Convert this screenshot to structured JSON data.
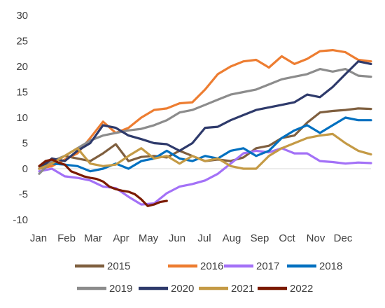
{
  "chart_data": {
    "type": "line",
    "title": "",
    "xlabel": "",
    "ylabel": "",
    "x_ticks": [
      "Jan",
      "Feb",
      "Mar",
      "Apr",
      "May",
      "Jun",
      "Jul",
      "Aug",
      "Sep",
      "Oct",
      "Nov",
      "Dec"
    ],
    "y_ticks": [
      -10,
      -5,
      0,
      5,
      10,
      15,
      20,
      25,
      30
    ],
    "ylim": [
      -10,
      30
    ],
    "x_unit": "weeks from start of year",
    "grid": false,
    "legend_position": "bottom",
    "series": [
      {
        "name": "2015",
        "color": "#7f5f3f",
        "x": [
          0,
          2,
          4,
          6,
          8,
          10,
          12,
          14,
          16,
          18,
          20,
          22,
          24,
          26,
          28,
          30,
          32,
          34,
          36,
          38,
          40,
          42,
          44,
          46,
          48,
          50,
          52
        ],
        "values": [
          0,
          1.5,
          2.5,
          2,
          1.5,
          3,
          4.8,
          1.5,
          2.3,
          2.5,
          2.2,
          3.5,
          2.5,
          1.5,
          1.8,
          1.5,
          2.2,
          4.0,
          4.5,
          6.0,
          6.5,
          9.0,
          11.0,
          11.3,
          11.5,
          11.8,
          11.7
        ]
      },
      {
        "name": "2016",
        "color": "#ed7d31",
        "x": [
          0,
          2,
          4,
          6,
          8,
          10,
          12,
          14,
          16,
          18,
          20,
          22,
          24,
          26,
          28,
          30,
          32,
          34,
          36,
          38,
          40,
          42,
          44,
          46,
          48,
          50,
          52
        ],
        "values": [
          0,
          0.5,
          1.8,
          3.0,
          6.0,
          9.2,
          7.0,
          8.0,
          10.0,
          11.5,
          11.8,
          12.8,
          13.0,
          15.5,
          18.5,
          20.0,
          21.0,
          21.3,
          19.8,
          22.0,
          20.5,
          21.5,
          23.0,
          23.2,
          22.8,
          21.3,
          21.0
        ]
      },
      {
        "name": "2017",
        "color": "#a371f7",
        "x": [
          0,
          2,
          4,
          6,
          8,
          10,
          12,
          14,
          16,
          18,
          20,
          22,
          24,
          26,
          28,
          30,
          32,
          34,
          36,
          38,
          40,
          42,
          44,
          46,
          48,
          50,
          52
        ],
        "values": [
          -0.5,
          0,
          -1.5,
          -1.8,
          -2.3,
          -3.5,
          -3.8,
          -5.5,
          -7.0,
          -6.8,
          -4.8,
          -3.5,
          -3.0,
          -2.3,
          -1.0,
          1.0,
          3.0,
          3.5,
          3.2,
          4.0,
          3.0,
          3.0,
          1.5,
          1.3,
          1.0,
          1.2,
          1.1
        ]
      },
      {
        "name": "2018",
        "color": "#0070c0",
        "x": [
          0,
          2,
          4,
          6,
          8,
          10,
          12,
          14,
          16,
          18,
          20,
          22,
          24,
          26,
          28,
          30,
          32,
          34,
          36,
          38,
          40,
          42,
          44,
          46,
          48,
          50,
          52
        ],
        "values": [
          0,
          1.0,
          0.8,
          0.5,
          -0.5,
          0,
          1.0,
          0,
          1.5,
          2.0,
          3.5,
          2.0,
          1.5,
          2.5,
          2.0,
          3.5,
          4.0,
          2.5,
          3.5,
          6.0,
          7.5,
          8.5,
          7.0,
          8.5,
          10.0,
          9.5,
          9.5
        ]
      },
      {
        "name": "2019",
        "color": "#8c8c8c",
        "x": [
          0,
          2,
          4,
          6,
          8,
          10,
          12,
          14,
          16,
          18,
          20,
          22,
          24,
          26,
          28,
          30,
          32,
          34,
          36,
          38,
          40,
          42,
          44,
          46,
          48,
          50,
          52
        ],
        "values": [
          -1.0,
          1.5,
          2.5,
          4.0,
          5.5,
          6.5,
          7.0,
          7.5,
          7.8,
          8.5,
          9.5,
          11.0,
          11.5,
          12.5,
          13.5,
          14.5,
          15.0,
          15.5,
          16.5,
          17.5,
          18.0,
          18.5,
          19.5,
          19.0,
          19.5,
          18.2,
          18.0
        ]
      },
      {
        "name": "2020",
        "color": "#2e3a6b",
        "x": [
          0,
          2,
          4,
          6,
          8,
          10,
          12,
          14,
          16,
          18,
          20,
          22,
          24,
          26,
          28,
          30,
          32,
          34,
          36,
          38,
          40,
          42,
          44,
          46,
          48,
          50,
          52
        ],
        "values": [
          0,
          2.0,
          1.5,
          3.5,
          5.0,
          8.5,
          8.0,
          6.5,
          5.8,
          5.0,
          4.8,
          3.5,
          5.0,
          8.0,
          8.2,
          9.5,
          10.5,
          11.5,
          12.0,
          12.5,
          13.0,
          14.5,
          14.0,
          16.0,
          18.5,
          21.0,
          20.5
        ]
      },
      {
        "name": "2021",
        "color": "#c49a45",
        "x": [
          0,
          2,
          4,
          6,
          8,
          10,
          12,
          14,
          16,
          18,
          20,
          22,
          24,
          26,
          28,
          30,
          32,
          34,
          36,
          38,
          40,
          42,
          44,
          46,
          48,
          50,
          52
        ],
        "values": [
          0,
          1.0,
          2.5,
          4.0,
          1.0,
          0.5,
          0.8,
          2.5,
          4.0,
          2.0,
          2.5,
          1.0,
          2.5,
          1.5,
          2.0,
          0.5,
          0,
          0,
          2.5,
          4.0,
          5.0,
          6.0,
          6.5,
          6.8,
          5.0,
          3.5,
          2.8
        ]
      },
      {
        "name": "2022",
        "color": "#7b1a00",
        "x": [
          0,
          1,
          2,
          3,
          4,
          5,
          6,
          7,
          8,
          9,
          10,
          11,
          12,
          13,
          14,
          15,
          16,
          17,
          18,
          19,
          20
        ],
        "values": [
          0.5,
          1.5,
          1.8,
          1.2,
          0.8,
          -0.5,
          -1.0,
          -1.5,
          -1.8,
          -2.0,
          -2.5,
          -3.5,
          -4.0,
          -4.3,
          -4.5,
          -5.0,
          -6.0,
          -7.3,
          -7.0,
          -6.5,
          -6.3
        ]
      }
    ]
  },
  "legend": {
    "row1": [
      "2015",
      "2016",
      "2017",
      "2018"
    ],
    "row2": [
      "2019",
      "2020",
      "2021",
      "2022"
    ]
  }
}
